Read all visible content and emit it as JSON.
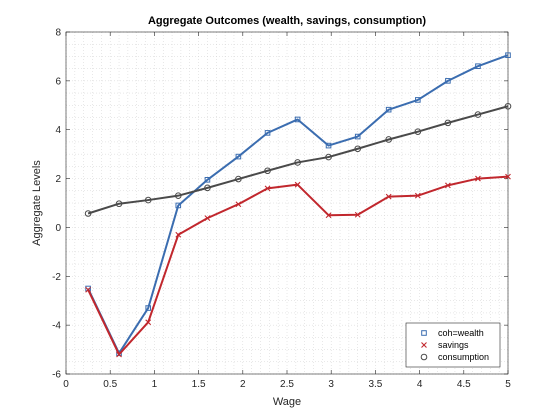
{
  "chart_data": {
    "type": "line",
    "title": "Aggregate Outcomes (wealth, savings, consumption)",
    "xlabel": "Wage",
    "ylabel": "Aggregate Levels",
    "xlim": [
      0,
      5
    ],
    "ylim": [
      -6,
      8
    ],
    "xticks": [
      "0",
      "0.5",
      "1",
      "1.5",
      "2",
      "2.5",
      "3",
      "3.5",
      "4",
      "4.5",
      "5"
    ],
    "yticks": [
      "-6",
      "-4",
      "-2",
      "0",
      "2",
      "4",
      "6",
      "8"
    ],
    "grid": "minor-dotted",
    "legend_position": "bottom-right",
    "x": [
      0.25,
      0.6,
      0.93,
      1.27,
      1.6,
      1.95,
      2.28,
      2.62,
      2.97,
      3.3,
      3.65,
      3.98,
      4.32,
      4.66,
      5.0
    ],
    "series": [
      {
        "name": "coh=wealth",
        "marker": "square",
        "color": "#3b6db0",
        "values": [
          -2.5,
          -5.15,
          -3.3,
          0.9,
          1.95,
          2.9,
          3.87,
          4.42,
          3.35,
          3.72,
          4.82,
          5.22,
          6.0,
          6.6,
          7.05
        ]
      },
      {
        "name": "savings",
        "marker": "x",
        "color": "#c1272d",
        "values": [
          -2.55,
          -5.2,
          -3.88,
          -0.3,
          0.38,
          0.95,
          1.6,
          1.75,
          0.5,
          0.52,
          1.26,
          1.3,
          1.72,
          2.0,
          2.08
        ]
      },
      {
        "name": "consumption",
        "marker": "circle",
        "color": "#4a4a4a",
        "values": [
          0.57,
          0.97,
          1.12,
          1.3,
          1.62,
          1.98,
          2.32,
          2.66,
          2.88,
          3.22,
          3.6,
          3.92,
          4.28,
          4.62,
          4.96
        ]
      }
    ]
  }
}
